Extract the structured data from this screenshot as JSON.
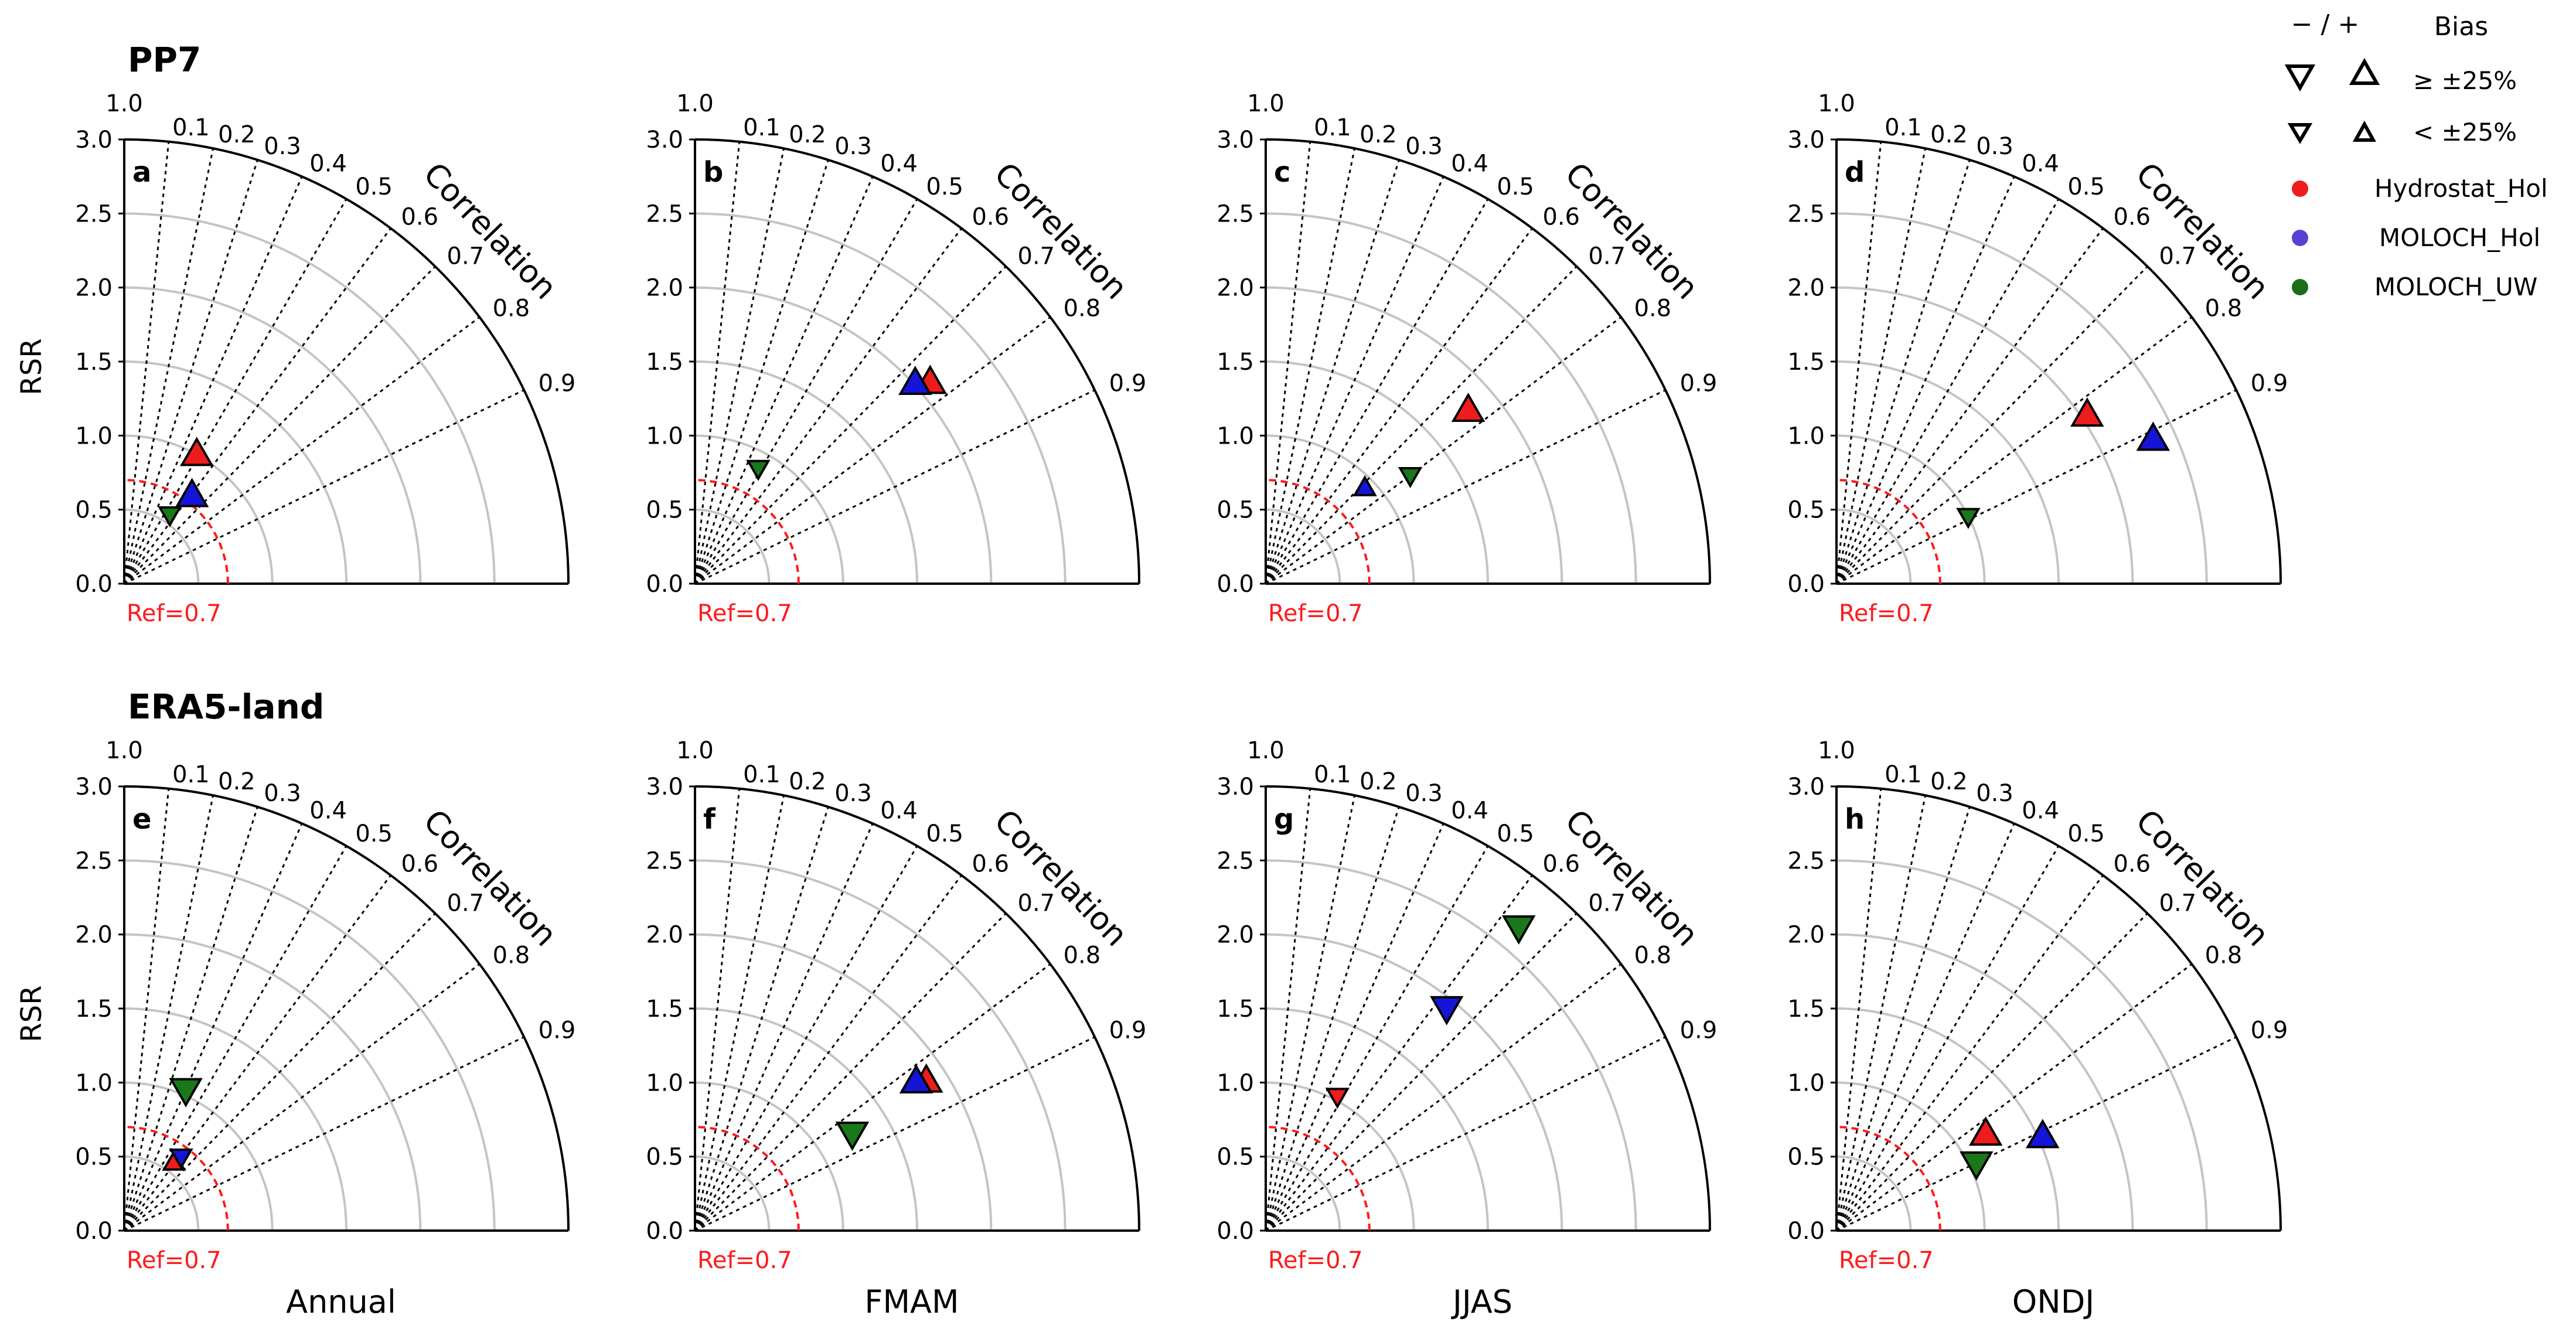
{
  "figure": {
    "rows": [
      {
        "title": "PP7"
      },
      {
        "title": "ERA5-land"
      }
    ],
    "column_labels": [
      "Annual",
      "FMAM",
      "JJAS",
      "ONDJ"
    ],
    "ylabel": "RSR",
    "corr_label": "Correlation",
    "ref_label": "Ref=0.7",
    "ref_value": 0.7,
    "r_ticks": [
      "0.0",
      "0.5",
      "1.0",
      "1.5",
      "2.0",
      "2.5",
      "3.0"
    ],
    "corr_ticks": [
      "0.9",
      "0.8",
      "0.7",
      "0.6",
      "0.5",
      "0.4",
      "0.3",
      "0.2",
      "0.1"
    ],
    "corr_top_label": "1.0",
    "rmax": 3.0
  },
  "legend": {
    "sign_header": "− / +",
    "bias_header": "Bias",
    "size_large_label": "≥ ±25%",
    "size_small_label": "< ±25%",
    "entries": [
      {
        "name": "Hydrostat_Hol",
        "color": "#ee1c1c"
      },
      {
        "name": "MOLOCH_Hol",
        "color": "#5b3fd4"
      },
      {
        "name": "MOLOCH_UW",
        "color": "#1a6e1a"
      }
    ]
  },
  "chart_data": {
    "type": "scatter",
    "subtype": "taylor_diagram",
    "note": "r = RSR (normalized std), c = correlation; shape up = positive bias, down = negative bias; size large = |bias| >= 25%",
    "series_colors": {
      "Hydrostat_Hol": "#ee1c1c",
      "MOLOCH_Hol": "#1515d8",
      "MOLOCH_UW": "#197819"
    },
    "panels": [
      {
        "label": "a",
        "row": 0,
        "col": 0,
        "points": [
          {
            "series": "Hydrostat_Hol",
            "r": 1.0,
            "c": 0.49,
            "shape": "up",
            "size": "large"
          },
          {
            "series": "MOLOCH_Hol",
            "r": 0.75,
            "c": 0.61,
            "shape": "up",
            "size": "large"
          },
          {
            "series": "MOLOCH_UW",
            "r": 0.56,
            "c": 0.55,
            "shape": "down",
            "size": "small"
          }
        ]
      },
      {
        "label": "b",
        "row": 0,
        "col": 1,
        "points": [
          {
            "series": "Hydrostat_Hol",
            "r": 2.09,
            "c": 0.76,
            "shape": "up",
            "size": "large"
          },
          {
            "series": "MOLOCH_Hol",
            "r": 2.01,
            "c": 0.74,
            "shape": "up",
            "size": "large"
          },
          {
            "series": "MOLOCH_UW",
            "r": 0.89,
            "c": 0.48,
            "shape": "down",
            "size": "small"
          }
        ]
      },
      {
        "label": "c",
        "row": 0,
        "col": 2,
        "points": [
          {
            "series": "Hydrostat_Hol",
            "r": 1.8,
            "c": 0.76,
            "shape": "up",
            "size": "large"
          },
          {
            "series": "MOLOCH_Hol",
            "r": 0.93,
            "c": 0.72,
            "shape": "up",
            "size": "small"
          },
          {
            "series": "MOLOCH_UW",
            "r": 1.22,
            "c": 0.8,
            "shape": "down",
            "size": "small"
          }
        ]
      },
      {
        "label": "d",
        "row": 0,
        "col": 3,
        "points": [
          {
            "series": "Hydrostat_Hol",
            "r": 2.04,
            "c": 0.83,
            "shape": "up",
            "size": "large"
          },
          {
            "series": "MOLOCH_Hol",
            "r": 2.35,
            "c": 0.91,
            "shape": "up",
            "size": "large"
          },
          {
            "series": "MOLOCH_UW",
            "r": 1.0,
            "c": 0.89,
            "shape": "down",
            "size": "small"
          }
        ]
      },
      {
        "label": "e",
        "row": 1,
        "col": 0,
        "points": [
          {
            "series": "Hydrostat_Hol",
            "r": 0.57,
            "c": 0.59,
            "shape": "up",
            "size": "small"
          },
          {
            "series": "MOLOCH_Hol",
            "r": 0.63,
            "c": 0.61,
            "shape": "down",
            "size": "small"
          },
          {
            "series": "MOLOCH_UW",
            "r": 1.04,
            "c": 0.4,
            "shape": "down",
            "size": "large"
          }
        ]
      },
      {
        "label": "f",
        "row": 1,
        "col": 1,
        "points": [
          {
            "series": "Hydrostat_Hol",
            "r": 1.86,
            "c": 0.84,
            "shape": "up",
            "size": "large"
          },
          {
            "series": "MOLOCH_Hol",
            "r": 1.8,
            "c": 0.83,
            "shape": "up",
            "size": "large"
          },
          {
            "series": "MOLOCH_UW",
            "r": 1.25,
            "c": 0.85,
            "shape": "down",
            "size": "large"
          }
        ]
      },
      {
        "label": "g",
        "row": 1,
        "col": 2,
        "points": [
          {
            "series": "Hydrostat_Hol",
            "r": 1.03,
            "c": 0.47,
            "shape": "down",
            "size": "small"
          },
          {
            "series": "MOLOCH_Hol",
            "r": 1.94,
            "c": 0.63,
            "shape": "down",
            "size": "large"
          },
          {
            "series": "MOLOCH_UW",
            "r": 2.67,
            "c": 0.64,
            "shape": "down",
            "size": "large"
          }
        ]
      },
      {
        "label": "h",
        "row": 1,
        "col": 3,
        "points": [
          {
            "series": "Hydrostat_Hol",
            "r": 1.2,
            "c": 0.84,
            "shape": "up",
            "size": "large"
          },
          {
            "series": "MOLOCH_Hol",
            "r": 1.53,
            "c": 0.91,
            "shape": "up",
            "size": "large"
          },
          {
            "series": "MOLOCH_UW",
            "r": 1.05,
            "c": 0.9,
            "shape": "down",
            "size": "large"
          }
        ]
      }
    ]
  }
}
